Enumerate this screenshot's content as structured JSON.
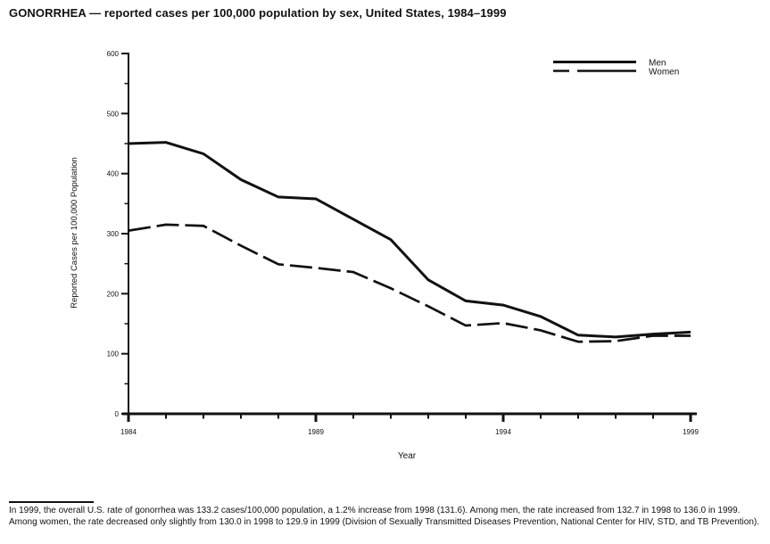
{
  "page": {
    "title": "GONORRHEA — reported cases per 100,000 population by sex, United States, 1984–1999",
    "caption": "In 1999, the overall U.S. rate of gonorrhea was 133.2 cases/100,000 population, a 1.2% increase from 1998 (131.6). Among men, the rate increased from 132.7 in 1998 to 136.0 in 1999. Among women, the rate decreased only slightly from 130.0 in 1998 to 129.9 in 1999 (Division of Sexually Transmitted Diseases Prevention, National Center for HIV, STD, and TB Prevention)."
  },
  "chart_data": {
    "type": "line",
    "title": "GONORRHEA — reported cases per 100,000 population by sex, United States, 1984–1999",
    "xlabel": "Year",
    "ylabel": "Reported Cases per 100,000 Population",
    "x": [
      1984,
      1985,
      1986,
      1987,
      1988,
      1989,
      1990,
      1991,
      1992,
      1993,
      1994,
      1995,
      1996,
      1997,
      1998,
      1999
    ],
    "series": [
      {
        "name": "Men",
        "line_style": "solid",
        "values": [
          450,
          452,
          433,
          390,
          361,
          358,
          324,
          290,
          223,
          188,
          181,
          162,
          131,
          128,
          132.7,
          136.0
        ]
      },
      {
        "name": "Women",
        "line_style": "dashed",
        "values": [
          305,
          315,
          313,
          280,
          249,
          243,
          236,
          209,
          179,
          147,
          151,
          139,
          120,
          121,
          130.0,
          129.9
        ]
      }
    ],
    "ylim": [
      0,
      600
    ],
    "yticks_major": [
      0,
      100,
      200,
      300,
      400,
      500,
      600
    ],
    "ytick_minor_step": 50,
    "xticks_labeled": [
      1984,
      1989,
      1994,
      1999
    ],
    "grid": "off",
    "legend_position": "top-right",
    "line_color": "#111111"
  }
}
